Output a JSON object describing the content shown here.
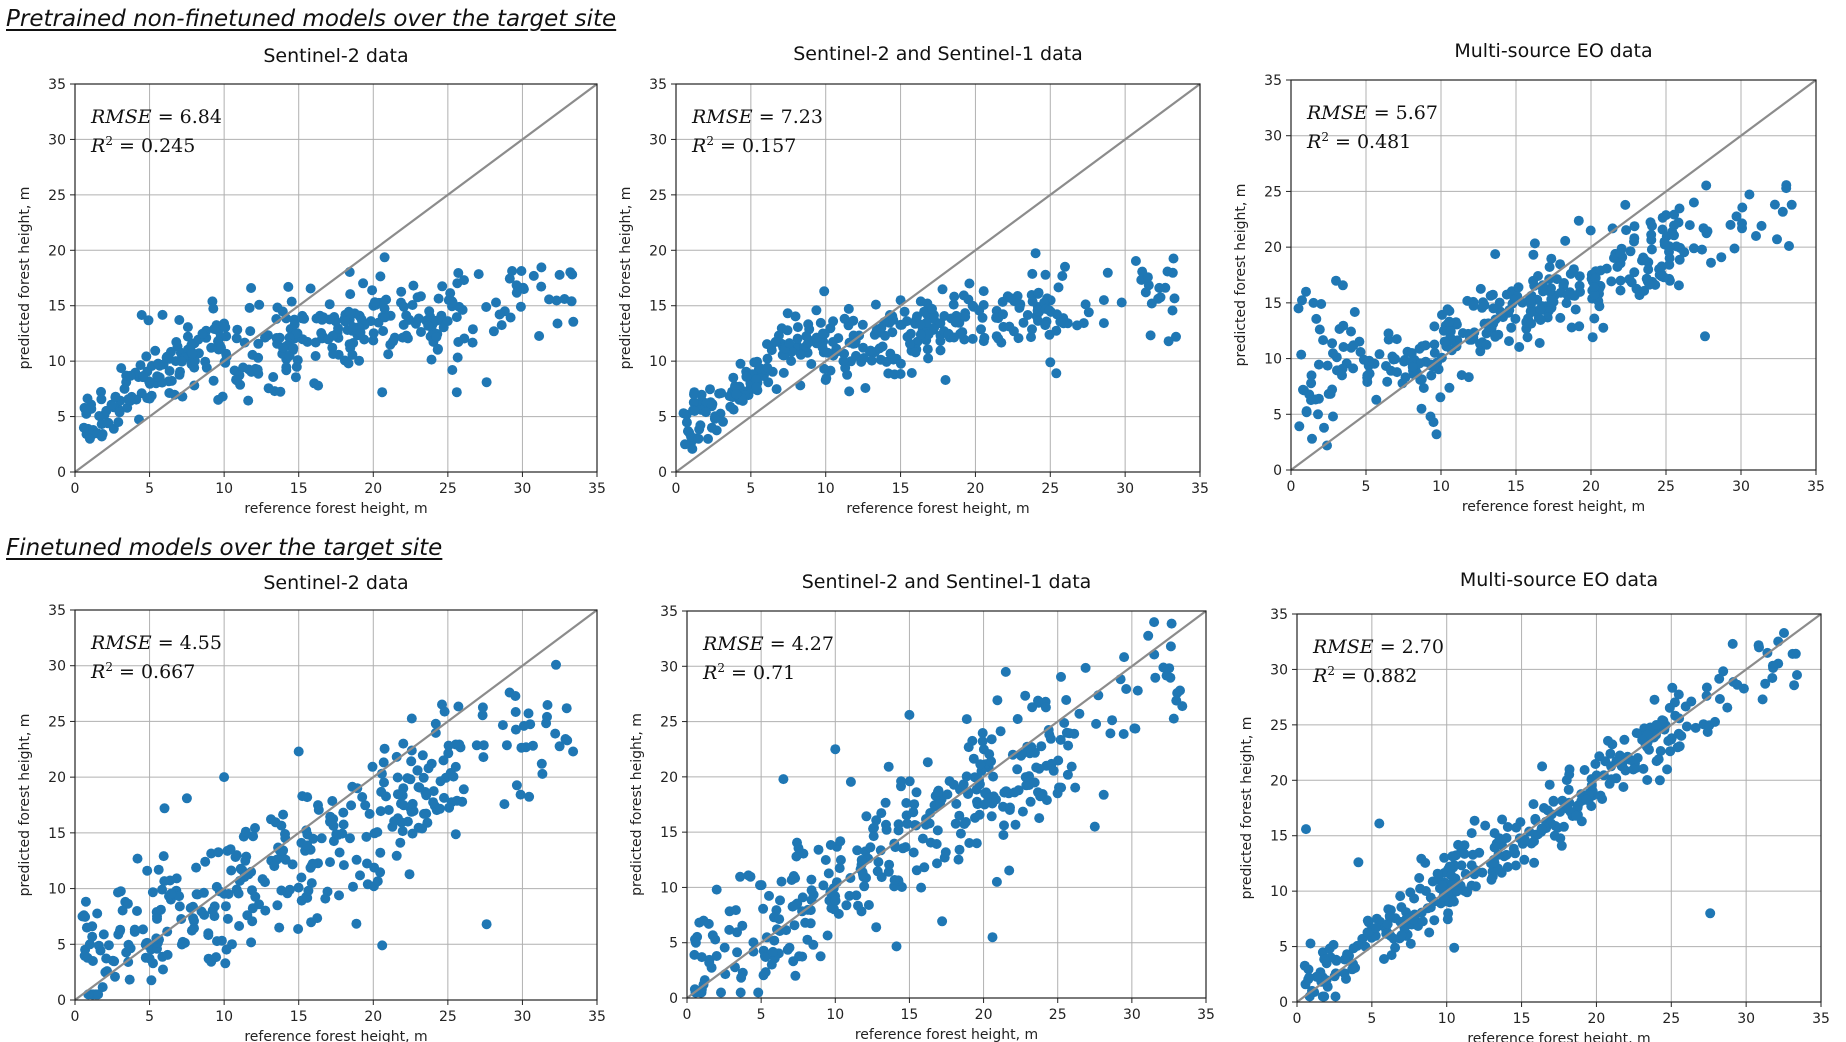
{
  "sections": [
    {
      "title": "Pretrained non-finetuned models over the target site"
    },
    {
      "title": "Finetuned models over the target site"
    }
  ],
  "colors": {
    "point": "#1f77b4",
    "diagonal": "#8c8c8c",
    "grid": "#b0b0b0"
  },
  "chart_data": [
    {
      "type": "scatter",
      "title": "Sentinel-2 data",
      "xlabel": "reference forest height, m",
      "ylabel": "predicted forest height, m",
      "xlim": [
        0,
        35
      ],
      "ylim": [
        0,
        35
      ],
      "ticks": [
        0,
        5,
        10,
        15,
        20,
        25,
        30,
        35
      ],
      "grid": true,
      "stats": {
        "rmse_label": "RMSE",
        "rmse": "6.84",
        "r2_label": "R",
        "r2": "0.245"
      },
      "regime": "pre",
      "slope": 0.35,
      "intercept": 6.5,
      "spread": 2.0,
      "seed": 11,
      "points": [
        [
          0.6,
          4.0
        ],
        [
          1.0,
          3.0
        ],
        [
          1.5,
          3.5
        ],
        [
          2.2,
          4.4
        ],
        [
          2.6,
          3.9
        ],
        [
          1.8,
          3.2
        ],
        [
          2.9,
          4.5
        ],
        [
          20.6,
          7.2
        ],
        [
          25.3,
          9.2
        ],
        [
          25.6,
          7.2
        ],
        [
          27.6,
          8.1
        ],
        [
          9.6,
          6.5
        ],
        [
          9.9,
          6.8
        ],
        [
          8.0,
          7.8
        ],
        [
          7.2,
          6.8
        ],
        [
          14.3,
          16.7
        ],
        [
          33.3,
          15.4
        ],
        [
          30.1,
          16.5
        ]
      ]
    },
    {
      "type": "scatter",
      "title": "Sentinel-2 and Sentinel-1 data",
      "xlabel": "reference forest height, m",
      "ylabel": "predicted forest height, m",
      "xlim": [
        0,
        35
      ],
      "ylim": [
        0,
        35
      ],
      "ticks": [
        0,
        5,
        10,
        15,
        20,
        25,
        30,
        35
      ],
      "grid": true,
      "stats": {
        "rmse_label": "RMSE",
        "rmse": "7.23",
        "r2_label": "R",
        "r2": "0.157"
      },
      "regime": "pre",
      "slope": 0.25,
      "intercept": 8.5,
      "spread": 1.6,
      "seed": 23,
      "points": [
        [
          0.6,
          2.5
        ],
        [
          1.0,
          3.2
        ],
        [
          1.5,
          3.0
        ],
        [
          0.5,
          5.3
        ],
        [
          1.2,
          7.0
        ],
        [
          2.0,
          5.4
        ],
        [
          2.4,
          4.0
        ],
        [
          2.6,
          4.8
        ],
        [
          9.9,
          9.3
        ],
        [
          10.0,
          8.3
        ],
        [
          14.6,
          8.8
        ],
        [
          18.0,
          8.3
        ],
        [
          19.6,
          17.0
        ],
        [
          25.0,
          9.9
        ],
        [
          25.4,
          8.9
        ],
        [
          33.4,
          12.2
        ],
        [
          32.9,
          11.8
        ],
        [
          9.9,
          16.3
        ]
      ]
    },
    {
      "type": "scatter",
      "title": "Multi-source EO data",
      "xlabel": "reference forest height, m",
      "ylabel": "predicted forest height, m",
      "xlim": [
        0,
        35
      ],
      "ylim": [
        0,
        35
      ],
      "ticks": [
        0,
        5,
        10,
        15,
        20,
        25,
        30,
        35
      ],
      "grid": true,
      "stats": {
        "rmse_label": "RMSE",
        "rmse": "5.67",
        "r2_label": "R",
        "r2": "0.481"
      },
      "regime": "multi",
      "slope": 0.55,
      "intercept": 4.0,
      "spread": 1.9,
      "seed": 37,
      "points": [
        [
          0.5,
          14.5
        ],
        [
          1.0,
          16.0
        ],
        [
          1.5,
          15.0
        ],
        [
          0.8,
          7.2
        ],
        [
          1.8,
          5.0
        ],
        [
          2.2,
          3.8
        ],
        [
          2.8,
          4.8
        ],
        [
          1.4,
          2.8
        ],
        [
          2.4,
          2.2
        ],
        [
          9.3,
          4.8
        ],
        [
          9.5,
          4.3
        ],
        [
          9.7,
          3.2
        ],
        [
          8.7,
          5.5
        ],
        [
          27.6,
          12.0
        ],
        [
          27.5,
          21.7
        ],
        [
          29.3,
          22.0
        ],
        [
          31.0,
          21.0
        ],
        [
          32.4,
          20.7
        ],
        [
          33.2,
          20.1
        ],
        [
          28.0,
          18.6
        ]
      ]
    },
    {
      "type": "scatter",
      "title": "Sentinel-2 data",
      "xlabel": "reference forest height, m",
      "ylabel": "predicted forest height, m",
      "xlim": [
        0,
        35
      ],
      "ylim": [
        0,
        35
      ],
      "ticks": [
        0,
        5,
        10,
        15,
        20,
        25,
        30,
        35
      ],
      "grid": true,
      "stats": {
        "rmse_label": "RMSE",
        "rmse": "4.55",
        "r2_label": "R",
        "r2": "0.667"
      },
      "regime": "fine",
      "slope": 0.66,
      "intercept": 3.0,
      "spread": 3.0,
      "seed": 53,
      "points": [
        [
          0.5,
          7.5
        ],
        [
          0.8,
          6.5
        ],
        [
          1.0,
          5.0
        ],
        [
          1.2,
          3.5
        ],
        [
          20.6,
          4.9
        ],
        [
          27.6,
          6.8
        ],
        [
          30.1,
          24.6
        ],
        [
          33.0,
          23.3
        ],
        [
          33.4,
          22.3
        ],
        [
          31.3,
          21.2
        ],
        [
          10.0,
          20.0
        ],
        [
          15.0,
          22.3
        ],
        [
          6.0,
          17.2
        ],
        [
          7.5,
          18.1
        ]
      ]
    },
    {
      "type": "scatter",
      "title": "Sentinel-2 and Sentinel-1 data",
      "xlabel": "reference forest height, m",
      "ylabel": "predicted forest height, m",
      "xlim": [
        0,
        35
      ],
      "ylim": [
        0,
        35
      ],
      "ticks": [
        0,
        5,
        10,
        15,
        20,
        25,
        30,
        35
      ],
      "grid": true,
      "stats": {
        "rmse_label": "RMSE",
        "rmse": "4.27",
        "r2_label": "R",
        "r2": "0.71"
      },
      "regime": "fine",
      "slope": 0.82,
      "intercept": 2.5,
      "spread": 3.2,
      "seed": 71,
      "points": [
        [
          0.5,
          3.9
        ],
        [
          1.0,
          3.7
        ],
        [
          1.5,
          3.2
        ],
        [
          2.0,
          3.8
        ],
        [
          20.6,
          5.5
        ],
        [
          20.9,
          10.5
        ],
        [
          15.0,
          25.6
        ],
        [
          10.0,
          22.5
        ],
        [
          6.5,
          19.8
        ],
        [
          2.0,
          9.8
        ],
        [
          33.4,
          26.4
        ],
        [
          33.0,
          26.9
        ],
        [
          30.4,
          27.8
        ],
        [
          27.5,
          15.5
        ]
      ]
    },
    {
      "type": "scatter",
      "title": "Multi-source EO data",
      "xlabel": "reference forest height, m",
      "ylabel": "predicted forest height, m",
      "xlim": [
        0,
        35
      ],
      "ylim": [
        0,
        35
      ],
      "ticks": [
        0,
        5,
        10,
        15,
        20,
        25,
        30,
        35
      ],
      "grid": true,
      "stats": {
        "rmse_label": "RMSE",
        "rmse": "2.70",
        "r2_label": "R",
        "r2": "0.882"
      },
      "regime": "fine",
      "slope": 0.95,
      "intercept": 0.7,
      "spread": 1.6,
      "seed": 97,
      "points": [
        [
          0.6,
          15.6
        ],
        [
          5.5,
          16.1
        ],
        [
          4.1,
          12.6
        ],
        [
          27.6,
          8.0
        ],
        [
          10.5,
          4.9
        ],
        [
          29.1,
          32.3
        ],
        [
          33.1,
          31.4
        ],
        [
          33.4,
          29.5
        ],
        [
          31.1,
          27.3
        ],
        [
          1.0,
          1.0
        ],
        [
          0.8,
          2.2
        ]
      ]
    }
  ]
}
